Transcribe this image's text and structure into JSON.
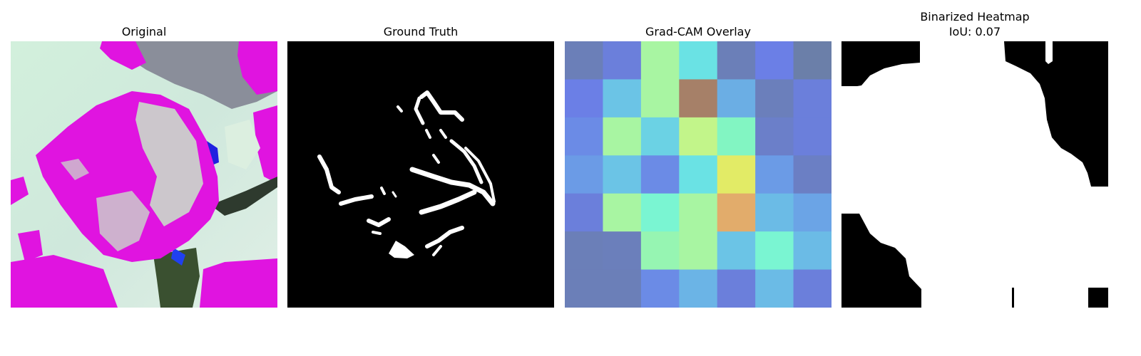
{
  "figure": {
    "panels": [
      {
        "title": "Original"
      },
      {
        "title": "Ground Truth"
      },
      {
        "title": "Grad-CAM Overlay"
      },
      {
        "title": "Binarized Heatmap",
        "subtitle": "IoU: 0.07"
      }
    ],
    "gradcam_grid": [
      [
        "#6b7fb8",
        "#6b7fdb",
        "#a8f5a2",
        "#6ae2e4",
        "#6b7fb8",
        "#6b7fe6",
        "#6b7fa9"
      ],
      [
        "#6b7fe6",
        "#6bc4e6",
        "#a8f5a2",
        "#a68068",
        "#6baee4",
        "#6b7fbb",
        "#6b7fdb"
      ],
      [
        "#6b8be6",
        "#a8f5a2",
        "#6bd2e4",
        "#c2f58a",
        "#82f5c2",
        "#6b7fc9",
        "#6b7fdb"
      ],
      [
        "#6b9be6",
        "#6bc4e6",
        "#6b8be6",
        "#6ae2e4",
        "#e2eb66",
        "#6b9be6",
        "#6b7fc4"
      ],
      [
        "#6b7fdb",
        "#a8f5a2",
        "#7af5d2",
        "#a8f5a2",
        "#e2ac6b",
        "#6bbbe6",
        "#6ba4e6"
      ],
      [
        "#6b7fb8",
        "#6b7fbb",
        "#96f5b2",
        "#a8f5a2",
        "#6bc4e6",
        "#7af5d2",
        "#6bbbe6"
      ],
      [
        "#6b7fb8",
        "#6b7fb8",
        "#6b8be6",
        "#6bb4e6",
        "#6b7fdb",
        "#6bbbe6",
        "#6b7fdb"
      ]
    ]
  }
}
